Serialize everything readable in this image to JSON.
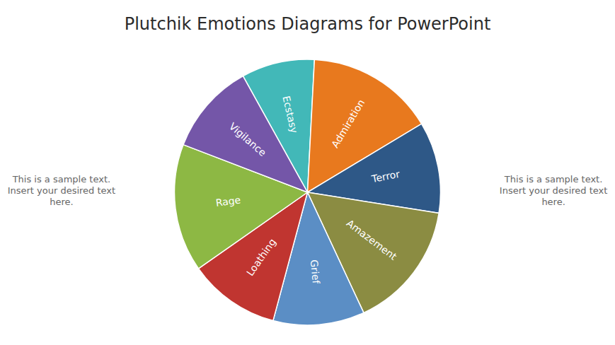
{
  "chart_data": {
    "type": "pie",
    "title": "Plutchik Emotions Diagrams for PowerPoint",
    "categories": [
      "Ecstasy",
      "Admiration",
      "Terror",
      "Amazement",
      "Grief",
      "Loathing",
      "Rage",
      "Vigilance"
    ],
    "values": [
      8,
      14,
      10,
      14,
      10,
      10,
      14,
      10
    ],
    "colors": [
      "#42b8b8",
      "#e8791e",
      "#2e5887",
      "#8b8c42",
      "#5b8ec5",
      "#c03530",
      "#8db844",
      "#7456a8"
    ],
    "annotations": [
      "This is a sample text.\nInsert your desired text\nhere.",
      "This is a sample text.\nInsert your desired text\nhere."
    ]
  }
}
